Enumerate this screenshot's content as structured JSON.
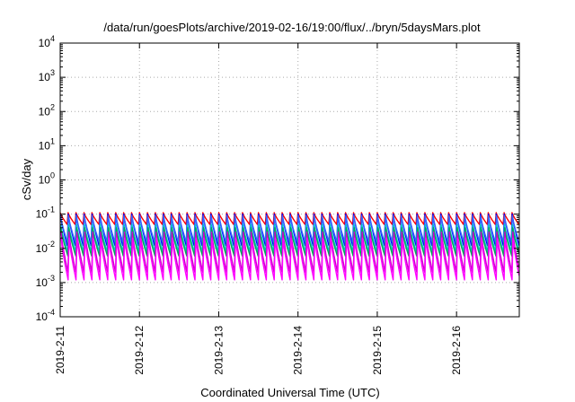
{
  "chart_data": {
    "type": "line",
    "title": "/data/run/goesPlots/archive/2019-02-16/19:00/flux/../bryn/5daysMars.plot",
    "xlabel": "Coordinated Universal Time (UTC)",
    "ylabel": "cSv/day",
    "yscale": "log",
    "ylim": [
      0.0001,
      10000
    ],
    "y_ticks": [
      {
        "base": "10",
        "exp": "4",
        "value": 10000
      },
      {
        "base": "10",
        "exp": "3",
        "value": 1000
      },
      {
        "base": "10",
        "exp": "2",
        "value": 100
      },
      {
        "base": "10",
        "exp": "1",
        "value": 10
      },
      {
        "base": "10",
        "exp": "0",
        "value": 1
      },
      {
        "base": "10",
        "exp": "-1",
        "value": 0.1
      },
      {
        "base": "10",
        "exp": "-2",
        "value": 0.01
      },
      {
        "base": "10",
        "exp": "-3",
        "value": 0.001
      },
      {
        "base": "10",
        "exp": "-4",
        "value": 0.0001
      }
    ],
    "xlim": [
      "2019-02-11",
      "2019-02-16T19:00"
    ],
    "x_ticks": [
      "2019-2-11",
      "2019-2-12",
      "2019-2-13",
      "2019-2-14",
      "2019-2-15",
      "2019-2-16"
    ],
    "grid": true,
    "legend": "none",
    "cycle_period_hours": 2.4,
    "series": [
      {
        "color": "#ff0000",
        "peak": 0.11,
        "trough": 0.05
      },
      {
        "color": "#0000ff",
        "peak": 0.1,
        "trough": 0.012
      },
      {
        "color": "#3366ff",
        "peak": 0.09,
        "trough": 0.015
      },
      {
        "color": "#00cccc",
        "peak": 0.05,
        "trough": 0.008
      },
      {
        "color": "#00aa55",
        "peak": 0.04,
        "trough": 0.006
      },
      {
        "color": "#cc00cc",
        "peak": 0.03,
        "trough": 0.002
      },
      {
        "color": "#ff00ff",
        "peak": 0.02,
        "trough": 0.0012
      }
    ]
  }
}
